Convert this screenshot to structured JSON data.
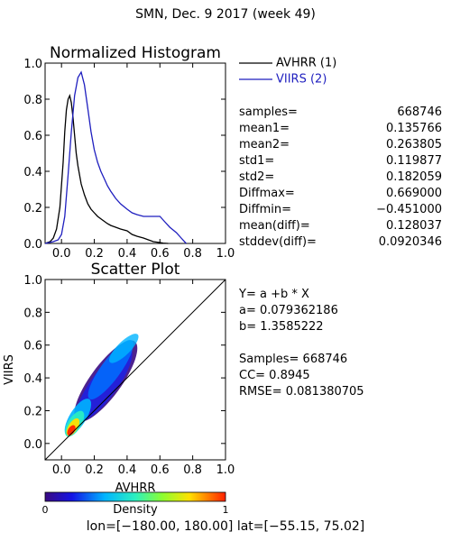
{
  "page_title": "SMN,  Dec. 9 2017 (week 49)",
  "chart_data": [
    {
      "type": "line",
      "title": "Normalized Histogram",
      "xlim": [
        -0.1,
        1.0
      ],
      "ylim": [
        0.0,
        1.0
      ],
      "xticks": [
        "0.0",
        "0.2",
        "0.4",
        "0.6",
        "0.8",
        "1.0"
      ],
      "yticks": [
        "0.0",
        "0.2",
        "0.4",
        "0.6",
        "0.8",
        "1.0"
      ],
      "series": [
        {
          "name": "AVHRR (1)",
          "color": "#000000",
          "x": [
            -0.1,
            -0.07,
            -0.05,
            -0.03,
            -0.01,
            0.01,
            0.02,
            0.03,
            0.04,
            0.05,
            0.06,
            0.07,
            0.08,
            0.09,
            0.1,
            0.12,
            0.14,
            0.16,
            0.18,
            0.2,
            0.22,
            0.25,
            0.28,
            0.3,
            0.33,
            0.36,
            0.4,
            0.43,
            0.46,
            0.5,
            0.53,
            0.56,
            0.6,
            0.62,
            0.65
          ],
          "y": [
            0.0,
            0.01,
            0.03,
            0.08,
            0.2,
            0.45,
            0.62,
            0.74,
            0.8,
            0.82,
            0.78,
            0.7,
            0.6,
            0.5,
            0.43,
            0.33,
            0.27,
            0.22,
            0.19,
            0.17,
            0.15,
            0.13,
            0.11,
            0.1,
            0.09,
            0.08,
            0.07,
            0.05,
            0.04,
            0.03,
            0.02,
            0.01,
            0.005,
            0.002,
            0.0
          ]
        },
        {
          "name": "VIIRS (2)",
          "color": "#1f1fbf",
          "x": [
            -0.1,
            -0.05,
            -0.02,
            0.0,
            0.02,
            0.04,
            0.06,
            0.08,
            0.1,
            0.12,
            0.14,
            0.16,
            0.18,
            0.2,
            0.22,
            0.24,
            0.26,
            0.28,
            0.3,
            0.33,
            0.36,
            0.4,
            0.43,
            0.46,
            0.5,
            0.55,
            0.58,
            0.6,
            0.63,
            0.66,
            0.7,
            0.73,
            0.76
          ],
          "y": [
            0.0,
            0.01,
            0.02,
            0.05,
            0.15,
            0.38,
            0.62,
            0.82,
            0.92,
            0.95,
            0.88,
            0.75,
            0.62,
            0.52,
            0.45,
            0.4,
            0.36,
            0.32,
            0.29,
            0.25,
            0.22,
            0.19,
            0.17,
            0.16,
            0.15,
            0.15,
            0.15,
            0.15,
            0.12,
            0.09,
            0.06,
            0.03,
            0.0
          ]
        }
      ]
    },
    {
      "type": "scatter",
      "title": "Scatter Plot",
      "xlabel": "AVHRR",
      "ylabel": "VIIRS",
      "xlim": [
        -0.1,
        1.0
      ],
      "ylim": [
        -0.1,
        1.0
      ],
      "xticks": [
        "0.0",
        "0.2",
        "0.4",
        "0.6",
        "0.8",
        "1.0"
      ],
      "yticks": [
        "0.0",
        "0.2",
        "0.4",
        "0.6",
        "0.8",
        "1.0"
      ],
      "one_to_one_line": true,
      "colorbar": {
        "label": "Density",
        "min_label": "0",
        "max_label": "1"
      }
    }
  ],
  "stats": [
    {
      "label": "samples=",
      "value": "668746"
    },
    {
      "label": "mean1=",
      "value": "0.135766"
    },
    {
      "label": "mean2=",
      "value": "0.263805"
    },
    {
      "label": "std1=",
      "value": "0.119877"
    },
    {
      "label": "std2=",
      "value": "0.182059"
    },
    {
      "label": "Diffmax=",
      "value": "0.669000"
    },
    {
      "label": "Diffmin=",
      "value": "−0.451000"
    },
    {
      "label": "mean(diff)=",
      "value": "0.128037"
    },
    {
      "label": "stddev(diff)=",
      "value": "0.0920346"
    }
  ],
  "regression": {
    "equation": "Y= a +b * X",
    "a": "a= 0.079362186",
    "b": "b= 1.3585222",
    "samples": "Samples= 668746",
    "cc": "CC=  0.8945",
    "rmse": "RMSE= 0.081380705"
  },
  "footer": "lon=[−180.00, 180.00] lat=[−55.15, 75.02]"
}
